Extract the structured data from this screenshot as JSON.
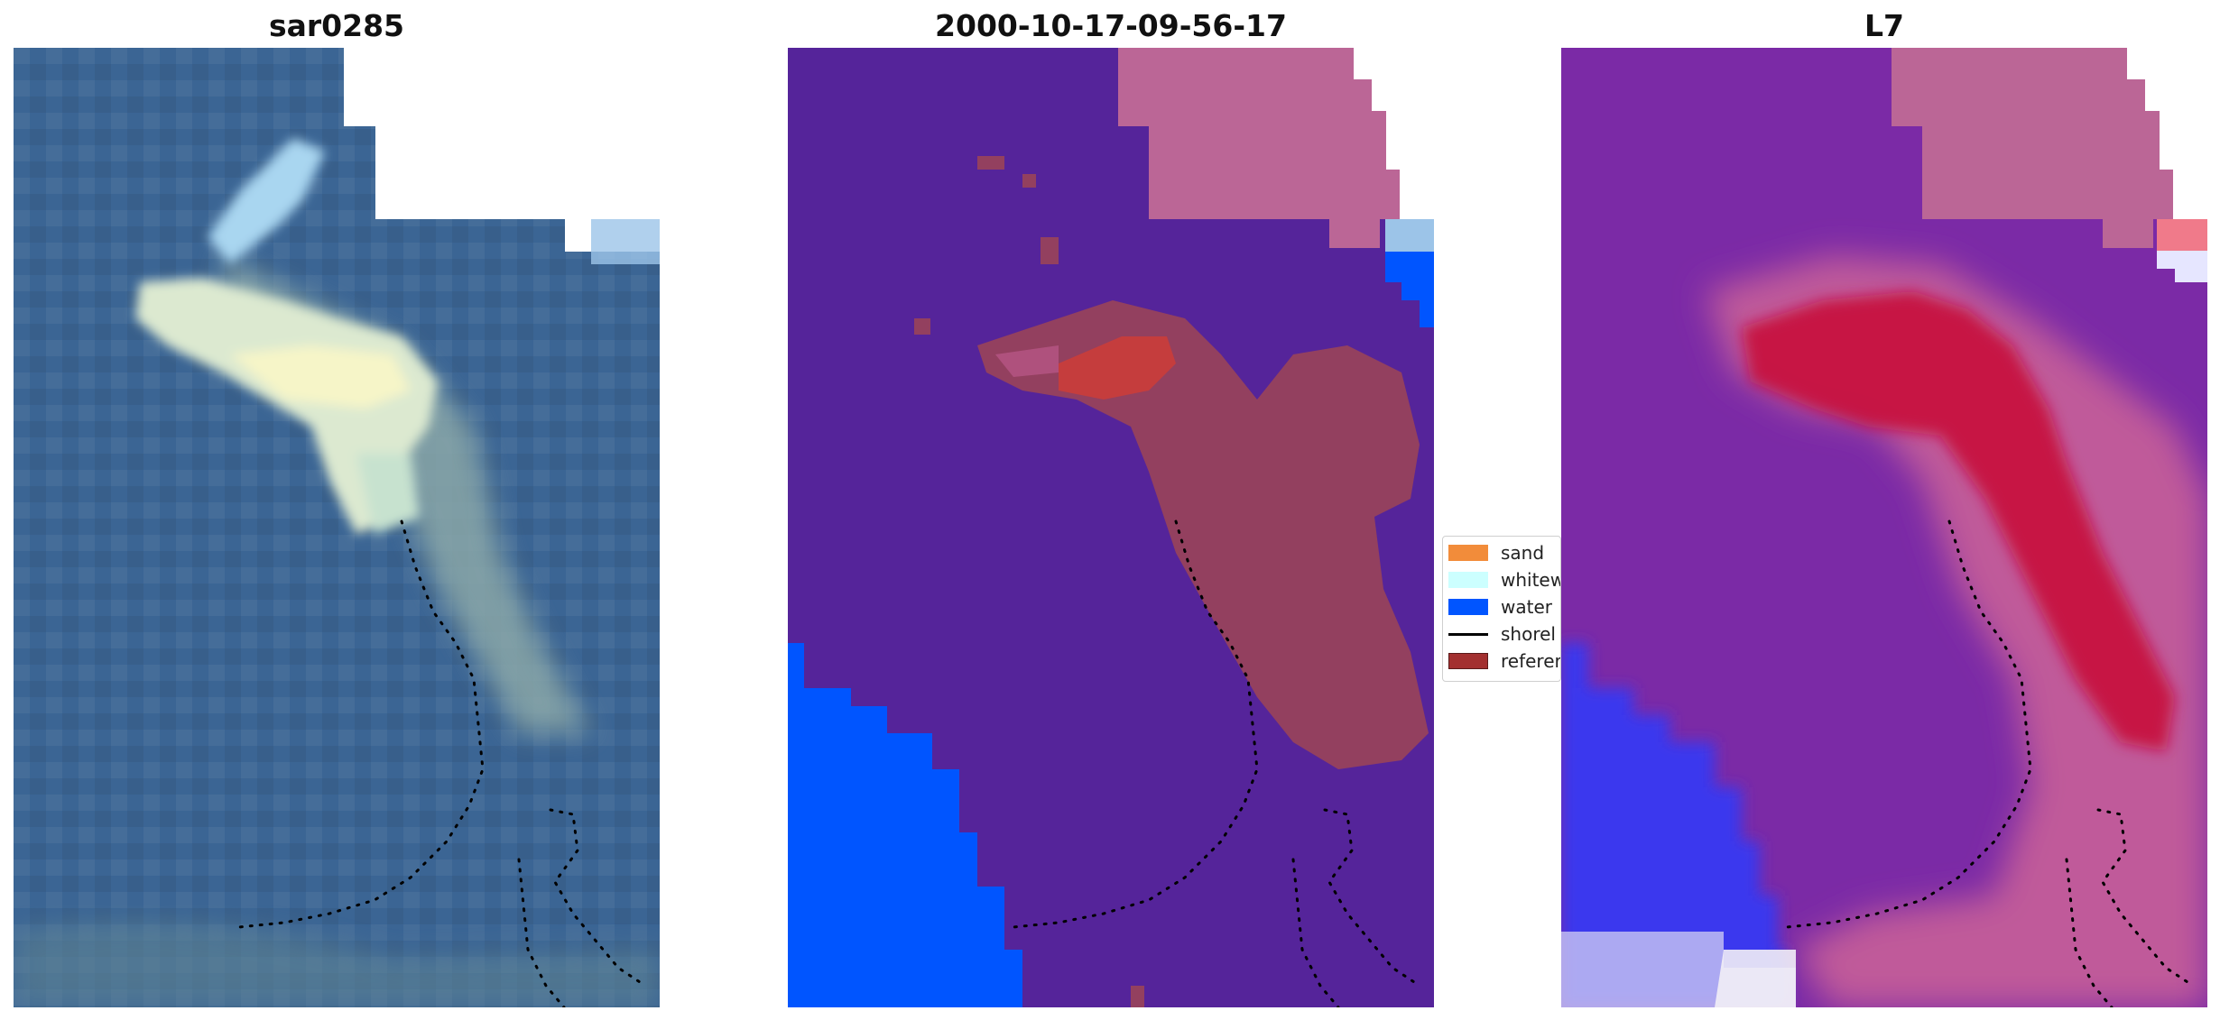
{
  "panels": [
    {
      "title": "sar0285"
    },
    {
      "title": "2000-10-17-09-56-17"
    },
    {
      "title": "L7"
    }
  ],
  "legend": {
    "items": [
      {
        "label": "sand",
        "color": "#f28c3a",
        "kind": "patch"
      },
      {
        "label": "whitew",
        "color": "#ccffff",
        "kind": "patch"
      },
      {
        "label": "water",
        "color": "#0055ff",
        "kind": "patch"
      },
      {
        "label": "shorel",
        "color": "#000000",
        "kind": "line"
      },
      {
        "label": "referer",
        "color": "#a33030",
        "kind": "patch"
      }
    ]
  },
  "colors": {
    "rgb_sea": "#3a6494",
    "class_land": "#55249a",
    "class_nodata": "#bb6696",
    "class_water": "#0055ff",
    "class_plume": "#93405f",
    "class_reference": "#c53d3d",
    "l7_land": "#7b2aa6",
    "l7_plume": "#c8123a",
    "l7_water": "#3b38ee",
    "shoreline": "#000000"
  }
}
